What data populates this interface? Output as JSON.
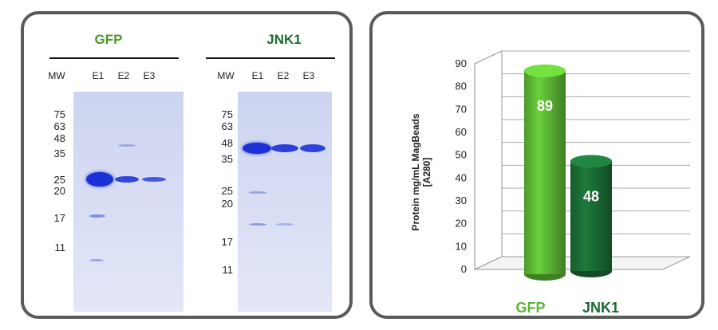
{
  "left_panel": {
    "gels": [
      {
        "title": "GFP",
        "title_color": "#4c9a2a",
        "lanes": [
          "MW",
          "E1",
          "E2",
          "E3"
        ],
        "mw_markers": [
          "75",
          "63",
          "48",
          "35",
          "25",
          "20",
          "17",
          "11"
        ]
      },
      {
        "title": "JNK1",
        "title_color": "#1e6b33",
        "lanes": [
          "MW",
          "E1",
          "E2",
          "E3"
        ],
        "mw_markers": [
          "75",
          "63",
          "48",
          "35",
          "25",
          "20",
          "17",
          "11"
        ]
      }
    ]
  },
  "chart_data": {
    "type": "bar",
    "categories": [
      "GFP",
      "JNK1"
    ],
    "values": [
      89,
      48
    ],
    "data_labels": [
      "89",
      "48"
    ],
    "ylabel": "Protein mg/mL MagBeads [A280]",
    "ylim": [
      0,
      90
    ],
    "yticks": [
      "0",
      "10",
      "20",
      "30",
      "40",
      "50",
      "60",
      "70",
      "80",
      "90"
    ],
    "grid": true,
    "colors": [
      "#5cb534",
      "#1a6b34"
    ],
    "label_colors": [
      "#5cb534",
      "#1a6b34"
    ]
  }
}
